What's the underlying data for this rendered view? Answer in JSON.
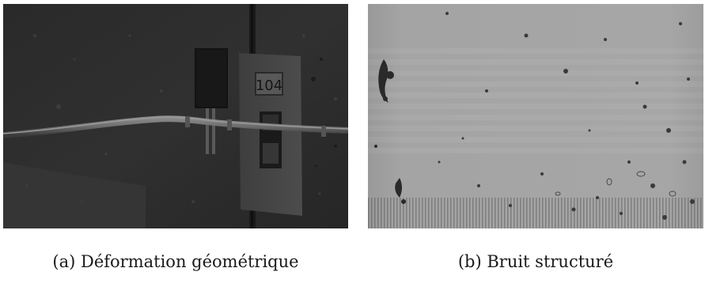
{
  "figures": [
    {
      "caption": "(a) Déformation géométrique",
      "description_colors": {
        "wall": "#2c2c2c",
        "box": "#121212",
        "plate": "#4a4a4a",
        "pipe": "#6e6e6e"
      },
      "plate_text": "104"
    },
    {
      "caption": "(b) Bruit structuré",
      "description_colors": {
        "surface": "#a6a6a6",
        "stain": "#2a2a2a"
      }
    }
  ]
}
